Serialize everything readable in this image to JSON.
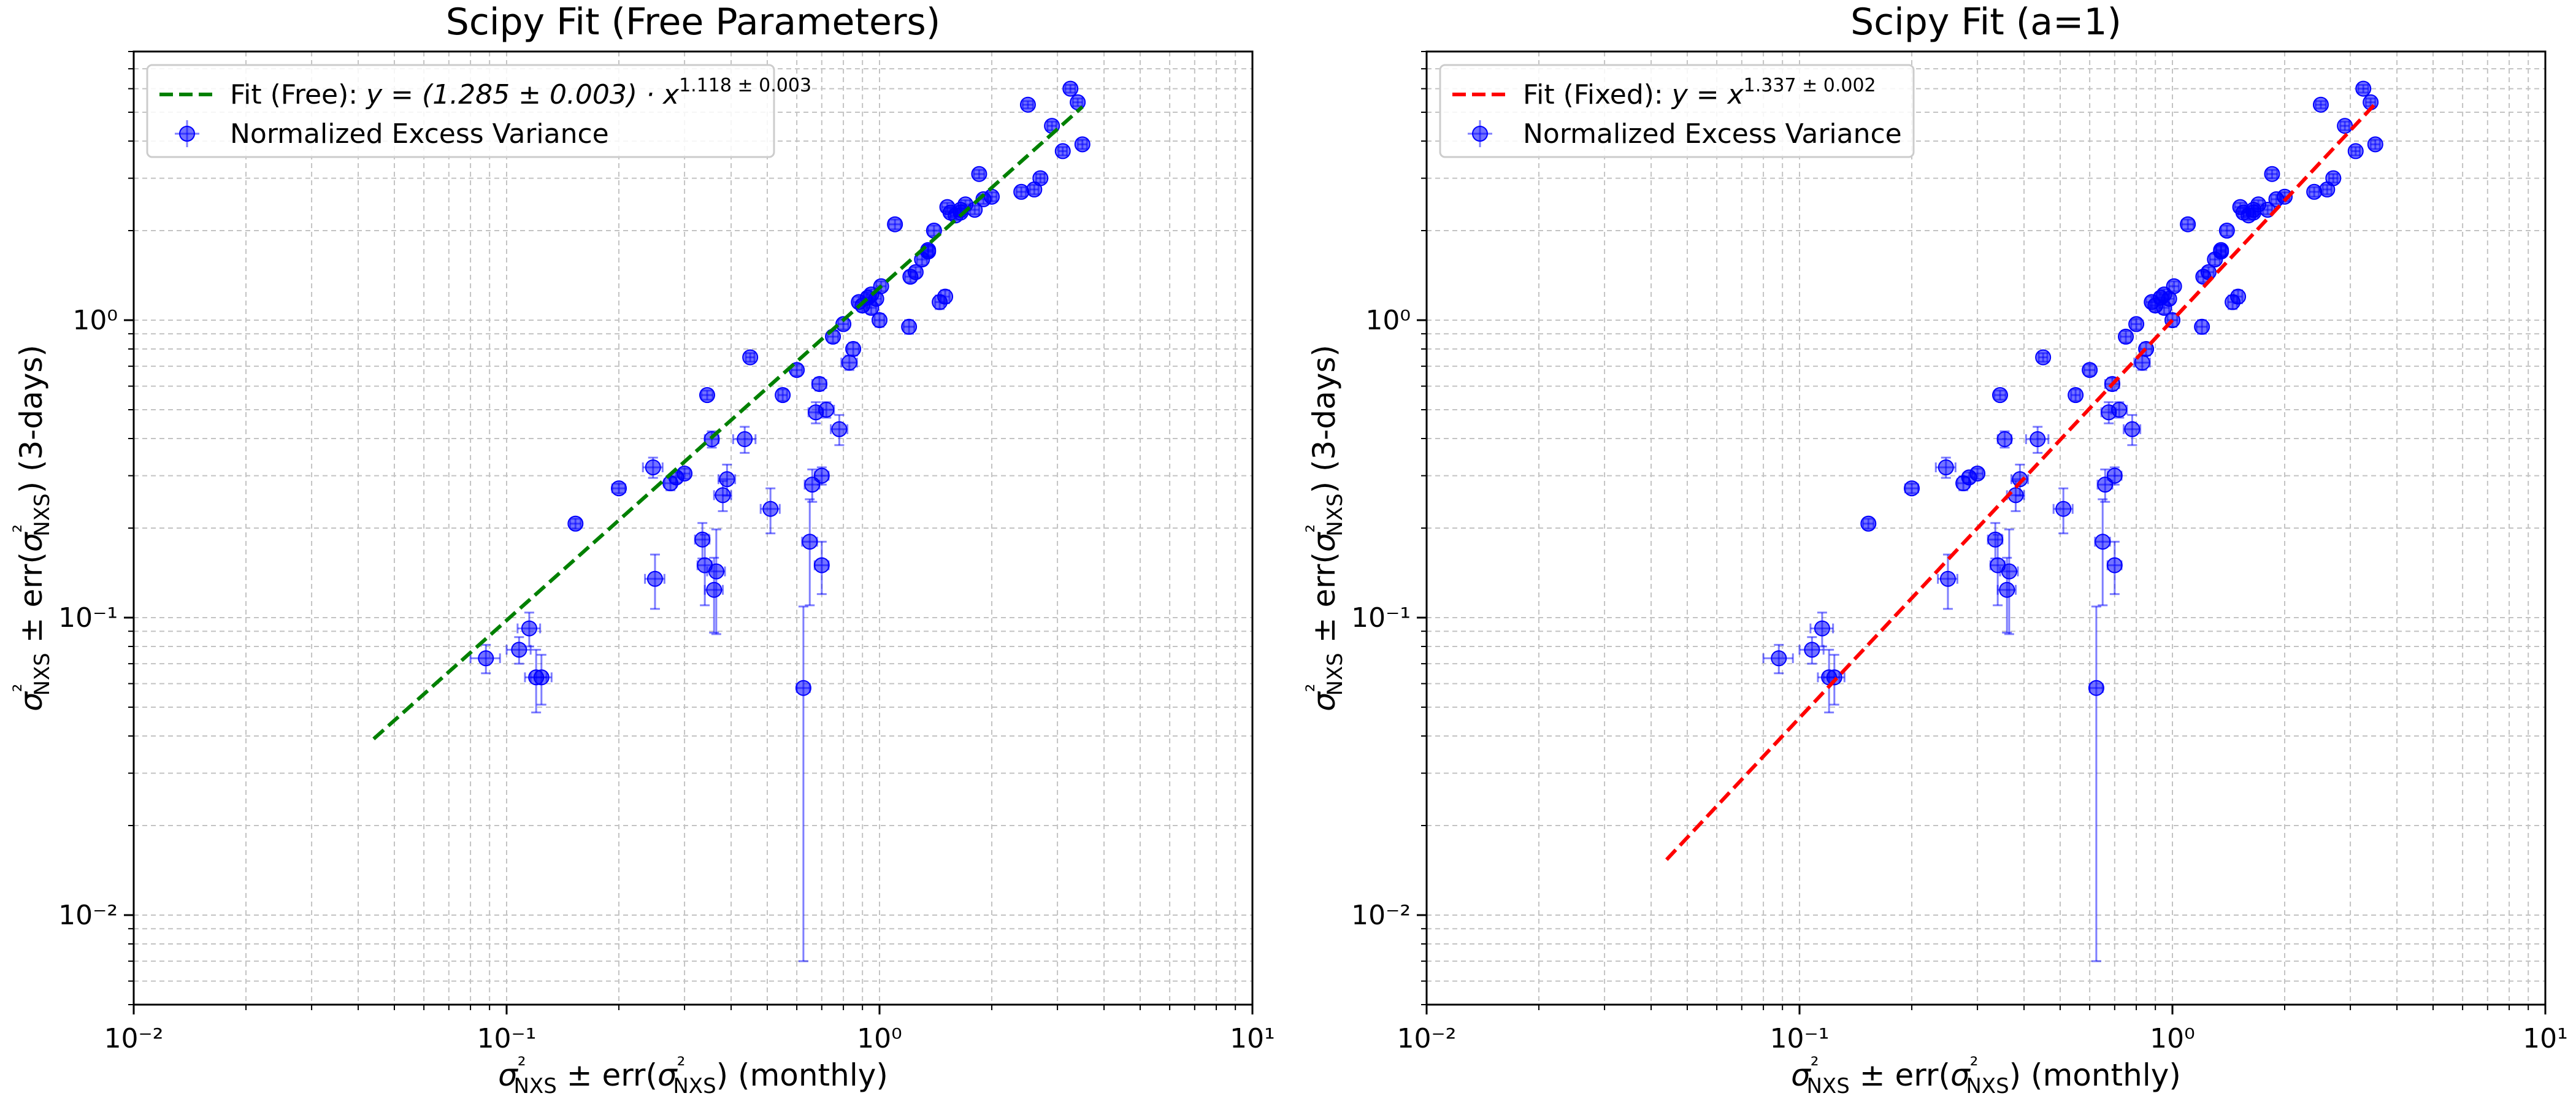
{
  "chart_data": [
    {
      "type": "scatter",
      "title": "Scipy Fit (Free Parameters)",
      "xlabel": "σ²NXS ± err(σ²NXS) (monthly)",
      "ylabel": "σ²NXS ± err(σ²NXS) (3-days)",
      "xscale": "log",
      "yscale": "log",
      "xlim": [
        0.01,
        10
      ],
      "ylim": [
        0.005,
        8
      ],
      "x_ticks": [
        "10⁻²",
        "10⁻¹",
        "10⁰",
        "10¹"
      ],
      "y_ticks": [
        "10⁻²",
        "10⁻¹",
        "10⁰"
      ],
      "grid": true,
      "legend_placement": "upper-left",
      "legend": [
        {
          "prefix": "Fit (Free): ",
          "formula": "y = (1.285 ± 0.003) · x",
          "exponent": "1.118 ± 0.003",
          "style": "dashed-line",
          "color": "#008000"
        },
        {
          "prefix": "Normalized Excess Variance",
          "formula": "",
          "exponent": "",
          "style": "errorbar-marker",
          "color": "#0000ff"
        }
      ],
      "fit": {
        "a": 1.285,
        "b": 1.118,
        "x_range": [
          0.044,
          3.5
        ],
        "color": "#008000"
      },
      "series": [
        {
          "name": "Normalized Excess Variance",
          "color": "#0000ff",
          "x": [
            0.088,
            0.108,
            0.115,
            0.12,
            0.124,
            0.153,
            0.2,
            0.247,
            0.25,
            0.275,
            0.285,
            0.3,
            0.335,
            0.34,
            0.345,
            0.355,
            0.36,
            0.365,
            0.38,
            0.39,
            0.435,
            0.45,
            0.51,
            0.55,
            0.6,
            0.625,
            0.65,
            0.66,
            0.675,
            0.69,
            0.7,
            0.7,
            0.72,
            0.75,
            0.78,
            0.8,
            0.83,
            0.85,
            0.88,
            0.9,
            0.93,
            0.95,
            0.95,
            0.98,
            1.0,
            1.01,
            1.1,
            1.2,
            1.21,
            1.25,
            1.3,
            1.35,
            1.35,
            1.4,
            1.45,
            1.5,
            1.52,
            1.55,
            1.6,
            1.65,
            1.65,
            1.7,
            1.8,
            1.85,
            1.9,
            2.0,
            2.4,
            2.5,
            2.6,
            2.7,
            2.9,
            3.1,
            3.25,
            3.4,
            3.5
          ],
          "y": [
            0.073,
            0.078,
            0.092,
            0.063,
            0.063,
            0.207,
            0.272,
            0.32,
            0.135,
            0.283,
            0.296,
            0.305,
            0.183,
            0.15,
            0.56,
            0.398,
            0.124,
            0.143,
            0.258,
            0.292,
            0.398,
            0.75,
            0.232,
            0.56,
            0.68,
            0.058,
            0.18,
            0.28,
            0.49,
            0.61,
            0.15,
            0.3,
            0.5,
            0.88,
            0.43,
            0.97,
            0.72,
            0.8,
            1.15,
            1.12,
            1.19,
            1.22,
            1.1,
            1.18,
            1.0,
            1.3,
            2.1,
            0.95,
            1.4,
            1.45,
            1.6,
            1.7,
            1.72,
            2.0,
            1.15,
            1.2,
            2.4,
            2.3,
            2.25,
            2.3,
            2.35,
            2.45,
            2.35,
            3.1,
            2.55,
            2.6,
            2.7,
            5.3,
            2.75,
            3.0,
            4.5,
            3.7,
            6.0,
            5.4,
            3.9
          ],
          "yerr": [
            0.008,
            0.008,
            0.012,
            0.015,
            0.012,
            0.008,
            0.01,
            0.025,
            0.028,
            0.015,
            0.012,
            0.012,
            0.025,
            0.04,
            0.02,
            0.025,
            0.035,
            0.055,
            0.03,
            0.035,
            0.04,
            0.025,
            0.04,
            0.025,
            0.03,
            0.051,
            0.07,
            0.035,
            0.04,
            0.03,
            0.03,
            0.02,
            0.03,
            0.04,
            0.05,
            0.04,
            0.04,
            0.04,
            0.05,
            0.05,
            0.05,
            0.05,
            0.05,
            0.05,
            0.05,
            0.05,
            0.08,
            0.05,
            0.06,
            0.06,
            0.07,
            0.07,
            0.07,
            0.08,
            0.06,
            0.06,
            0.08,
            0.08,
            0.08,
            0.08,
            0.08,
            0.08,
            0.08,
            0.1,
            0.09,
            0.09,
            0.1,
            0.15,
            0.1,
            0.1,
            0.15,
            0.12,
            0.18,
            0.16,
            0.14
          ],
          "xerr": [
            0.008,
            0.008,
            0.008,
            0.008,
            0.008,
            0.005,
            0.008,
            0.015,
            0.015,
            0.01,
            0.01,
            0.01,
            0.015,
            0.015,
            0.012,
            0.015,
            0.02,
            0.02,
            0.02,
            0.02,
            0.03,
            0.012,
            0.03,
            0.015,
            0.02,
            0.025,
            0.03,
            0.03,
            0.03,
            0.03,
            0.03,
            0.03,
            0.035,
            0.025,
            0.04,
            0.025,
            0.04,
            0.03,
            0.03,
            0.03,
            0.03,
            0.03,
            0.03,
            0.03,
            0.03,
            0.03,
            0.04,
            0.04,
            0.04,
            0.04,
            0.04,
            0.04,
            0.04,
            0.05,
            0.04,
            0.04,
            0.05,
            0.05,
            0.05,
            0.05,
            0.05,
            0.05,
            0.05,
            0.06,
            0.06,
            0.06,
            0.07,
            0.08,
            0.07,
            0.07,
            0.08,
            0.08,
            0.1,
            0.1,
            0.1
          ]
        }
      ]
    },
    {
      "type": "scatter",
      "title": "Scipy Fit (a=1)",
      "xlabel": "σ²NXS ± err(σ²NXS) (monthly)",
      "ylabel": "σ²NXS ± err(σ²NXS) (3-days)",
      "xscale": "log",
      "yscale": "log",
      "xlim": [
        0.01,
        10
      ],
      "ylim": [
        0.005,
        8
      ],
      "x_ticks": [
        "10⁻²",
        "10⁻¹",
        "10⁰",
        "10¹"
      ],
      "y_ticks": [
        "10⁻²",
        "10⁻¹",
        "10⁰"
      ],
      "grid": true,
      "legend_placement": "upper-left",
      "legend": [
        {
          "prefix": "Fit (Fixed): ",
          "formula": "y = x",
          "exponent": "1.337 ± 0.002",
          "style": "dashed-line",
          "color": "#ff0000"
        },
        {
          "prefix": "Normalized Excess Variance",
          "formula": "",
          "exponent": "",
          "style": "errorbar-marker",
          "color": "#0000ff"
        }
      ],
      "fit": {
        "a": 1.0,
        "b": 1.337,
        "x_range": [
          0.044,
          3.5
        ],
        "color": "#ff0000"
      },
      "series_ref": 0
    }
  ]
}
